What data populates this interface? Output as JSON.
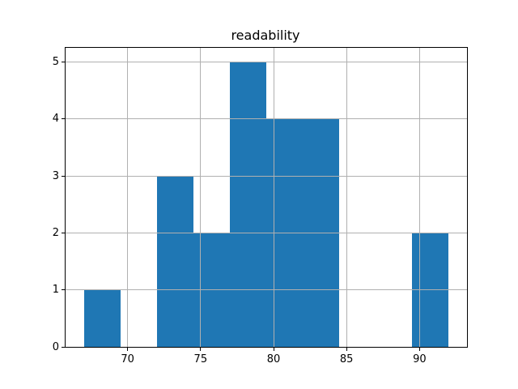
{
  "chart_data": {
    "type": "bar",
    "subtype": "histogram",
    "title": "readability",
    "xlabel": "",
    "ylabel": "",
    "bin_edges": [
      67,
      69.5,
      72,
      74.5,
      77,
      79.5,
      82,
      84.5,
      87,
      89.5,
      92
    ],
    "values": [
      1,
      0,
      3,
      2,
      5,
      4,
      4,
      0,
      0,
      2
    ],
    "xlim": [
      65.75,
      93.25
    ],
    "ylim": [
      0,
      5.25
    ],
    "x_ticks": [
      70,
      75,
      80,
      85,
      90
    ],
    "x_tick_labels": [
      "70",
      "75",
      "80",
      "85",
      "90"
    ],
    "y_ticks": [
      0,
      1,
      2,
      3,
      4,
      5
    ],
    "y_tick_labels": [
      "0",
      "1",
      "2",
      "3",
      "4",
      "5"
    ],
    "grid": true,
    "legend": null,
    "bar_color": "#1f77b4",
    "grid_color": "#b0b0b0",
    "spine_color": "#000000",
    "background_color": "#ffffff"
  }
}
